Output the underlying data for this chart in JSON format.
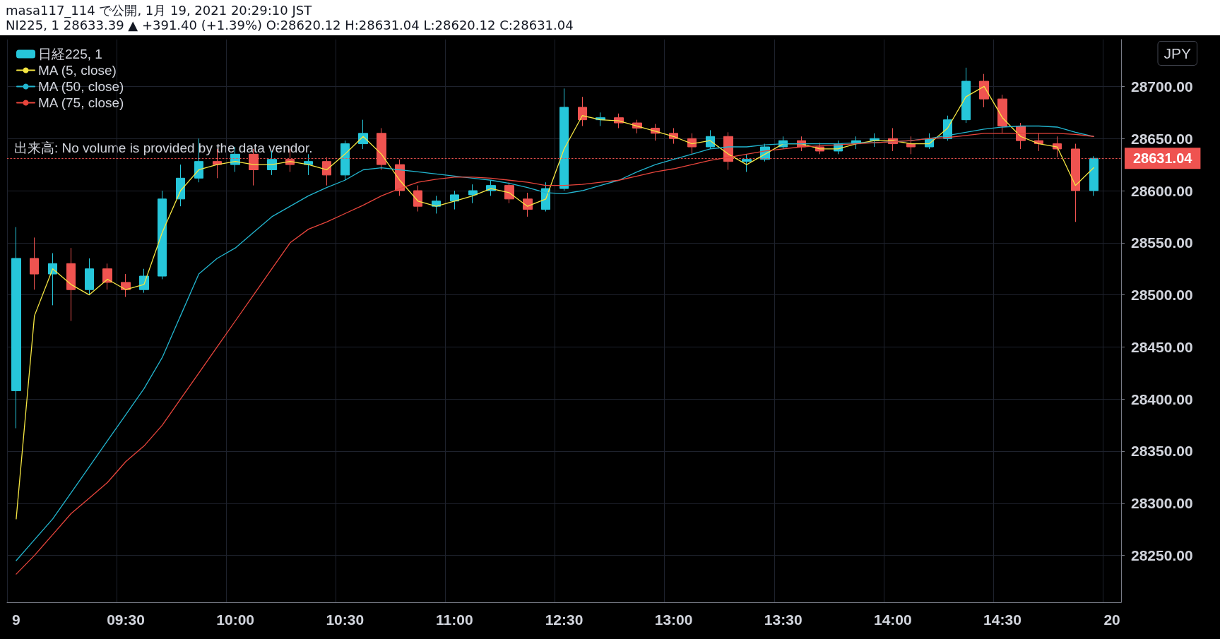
{
  "chart_data": {
    "type": "candlestick",
    "title": "masa117_114 で公開, 1月 19, 2021 20:29:10 JST",
    "subtitle": "NI225, 1 28633.39 ▲ +391.40 (+1.39%) O:28620.12 H:28631.04 L:28620.12 C:28631.04",
    "annotations": [
      "JPY",
      "出来高: No volume is provided by the data vendor."
    ],
    "categories": [
      "9",
      null,
      null,
      null,
      null,
      null,
      "09:30",
      null,
      null,
      null,
      null,
      null,
      "10:00",
      null,
      null,
      null,
      null,
      null,
      "10:30",
      null,
      null,
      null,
      null,
      null,
      "11:00",
      null,
      null,
      null,
      null,
      null,
      "12:30",
      null,
      null,
      null,
      null,
      null,
      "13:00",
      null,
      null,
      null,
      null,
      null,
      "13:30",
      null,
      null,
      null,
      null,
      null,
      "14:00",
      null,
      null,
      null,
      null,
      null,
      "14:30",
      null,
      null,
      null,
      null,
      null,
      "20"
    ],
    "series": [
      {
        "name": "日経225, 1",
        "colors": [
          "#26c6da",
          "#ef5350",
          "#26c6da",
          "#ef5350",
          "#26c6da",
          "#ef5350",
          "#ef5350",
          "#26c6da",
          "#26c6da",
          "#26c6da",
          "#26c6da",
          "#ef5350",
          "#26c6da",
          "#ef5350",
          "#26c6da",
          "#ef5350",
          "#26c6da",
          "#ef5350",
          "#26c6da",
          "#26c6da",
          "#ef5350",
          "#ef5350",
          "#ef5350",
          "#26c6da",
          "#26c6da",
          "#26c6da",
          "#26c6da",
          "#ef5350",
          "#ef5350",
          "#26c6da",
          "#26c6da",
          "#ef5350",
          "#26c6da",
          "#ef5350",
          "#ef5350",
          "#ef5350",
          "#ef5350",
          "#ef5350",
          "#26c6da",
          "#ef5350",
          "#26c6da",
          "#26c6da",
          "#26c6da",
          "#ef5350",
          "#ef5350",
          "#26c6da",
          "#26c6da",
          "#26c6da",
          "#ef5350",
          "#ef5350",
          "#26c6da",
          "#26c6da",
          "#26c6da",
          "#ef5350",
          "#ef5350",
          "#ef5350",
          "#ef5350",
          "#ef5350",
          "#ef5350",
          "#26c6da",
          null
        ],
        "ohlc": [
          [
            28408,
            28565,
            28372,
            28535
          ],
          [
            28535,
            28555,
            28505,
            28520
          ],
          [
            28520,
            28540,
            28490,
            28530
          ],
          [
            28530,
            28545,
            28475,
            28505
          ],
          [
            28505,
            28535,
            28500,
            28525
          ],
          [
            28525,
            28530,
            28505,
            28512
          ],
          [
            28512,
            28520,
            28498,
            28505
          ],
          [
            28505,
            28525,
            28502,
            28518
          ],
          [
            28518,
            28600,
            28515,
            28592
          ],
          [
            28592,
            28625,
            28585,
            28612
          ],
          [
            28612,
            28650,
            28608,
            28628
          ],
          [
            28628,
            28640,
            28612,
            28625
          ],
          [
            28625,
            28642,
            28618,
            28635
          ],
          [
            28635,
            28640,
            28605,
            28620
          ],
          [
            28620,
            28638,
            28615,
            28630
          ],
          [
            28630,
            28640,
            28618,
            28625
          ],
          [
            28625,
            28635,
            28615,
            28628
          ],
          [
            28628,
            28632,
            28605,
            28615
          ],
          [
            28615,
            28648,
            28610,
            28645
          ],
          [
            28645,
            28668,
            28640,
            28655
          ],
          [
            28655,
            28660,
            28620,
            28625
          ],
          [
            28625,
            28630,
            28595,
            28600
          ],
          [
            28600,
            28605,
            28580,
            28585
          ],
          [
            28585,
            28595,
            28578,
            28590
          ],
          [
            28590,
            28600,
            28582,
            28596
          ],
          [
            28596,
            28606,
            28588,
            28600
          ],
          [
            28600,
            28610,
            28595,
            28605
          ],
          [
            28605,
            28608,
            28588,
            28592
          ],
          [
            28592,
            28598,
            28575,
            28582
          ],
          [
            28582,
            28608,
            28580,
            28602
          ],
          [
            28602,
            28698,
            28600,
            28680
          ],
          [
            28680,
            28690,
            28662,
            28668
          ],
          [
            28668,
            28675,
            28662,
            28670
          ],
          [
            28670,
            28674,
            28660,
            28665
          ],
          [
            28665,
            28668,
            28655,
            28660
          ],
          [
            28660,
            28664,
            28648,
            28655
          ],
          [
            28655,
            28660,
            28645,
            28650
          ],
          [
            28650,
            28655,
            28635,
            28642
          ],
          [
            28642,
            28658,
            28640,
            28652
          ],
          [
            28652,
            28656,
            28620,
            28628
          ],
          [
            28628,
            28635,
            28618,
            28630
          ],
          [
            28630,
            28645,
            28628,
            28642
          ],
          [
            28642,
            28652,
            28640,
            28648
          ],
          [
            28648,
            28652,
            28638,
            28642
          ],
          [
            28642,
            28646,
            28635,
            28638
          ],
          [
            28638,
            28648,
            28635,
            28645
          ],
          [
            28645,
            28652,
            28640,
            28648
          ],
          [
            28648,
            28655,
            28642,
            28650
          ],
          [
            28650,
            28660,
            28638,
            28645
          ],
          [
            28645,
            28652,
            28635,
            28642
          ],
          [
            28642,
            28655,
            28640,
            28650
          ],
          [
            28650,
            28672,
            28648,
            28668
          ],
          [
            28668,
            28718,
            28665,
            28705
          ],
          [
            28705,
            28712,
            28680,
            28688
          ],
          [
            28688,
            28692,
            28655,
            28662
          ],
          [
            28662,
            28665,
            28640,
            28648
          ],
          [
            28648,
            28655,
            28638,
            28645
          ],
          [
            28645,
            28652,
            28632,
            28640
          ],
          [
            28640,
            28645,
            28570,
            28600
          ],
          [
            28600,
            28633,
            28595,
            28631
          ],
          null
        ]
      },
      {
        "name": "MA (5, close)",
        "type": "line",
        "color": "#f5e642",
        "values": [
          28285,
          28480,
          28525,
          28510,
          28500,
          28515,
          28505,
          28510,
          28560,
          28600,
          28620,
          28625,
          28628,
          28625,
          28625,
          28628,
          28625,
          28620,
          28635,
          28652,
          28635,
          28610,
          28590,
          28585,
          28590,
          28595,
          28602,
          28598,
          28585,
          28592,
          28640,
          28672,
          28668,
          28667,
          28662,
          28657,
          28652,
          28645,
          28648,
          28635,
          28625,
          28635,
          28645,
          28645,
          28640,
          28640,
          28645,
          28648,
          28648,
          28645,
          28645,
          28660,
          28690,
          28700,
          28670,
          28652,
          28645,
          28642,
          28605,
          28622,
          null
        ]
      },
      {
        "name": "MA (50, close)",
        "type": "line",
        "color": "#22b5cf",
        "values": [
          28245,
          28265,
          28285,
          28310,
          28335,
          28360,
          28385,
          28410,
          28440,
          28480,
          28520,
          28535,
          28545,
          28560,
          28575,
          28585,
          28595,
          28603,
          28610,
          28620,
          28622,
          28620,
          28618,
          28616,
          28614,
          28612,
          28610,
          28607,
          28603,
          28598,
          28597,
          28600,
          28605,
          28610,
          28618,
          28625,
          28630,
          28635,
          28640,
          28642,
          28642,
          28644,
          28645,
          28645,
          28645,
          28645,
          28646,
          28646,
          28647,
          28648,
          28650,
          28653,
          28656,
          28659,
          28661,
          28662,
          28662,
          28661,
          28656,
          28652,
          null
        ]
      },
      {
        "name": "MA (75, close)",
        "type": "line",
        "color": "#e8453c",
        "values": [
          28232,
          28250,
          28270,
          28290,
          28305,
          28320,
          28340,
          28355,
          28375,
          28400,
          28425,
          28450,
          28475,
          28500,
          28525,
          28550,
          28563,
          28570,
          28578,
          28586,
          28595,
          28602,
          28608,
          28611,
          28613,
          28613,
          28612,
          28610,
          28608,
          28605,
          28605,
          28606,
          28608,
          28610,
          28614,
          28618,
          28621,
          28625,
          28629,
          28632,
          28635,
          28638,
          28640,
          28642,
          28643,
          28644,
          28645,
          28646,
          28647,
          28648,
          28650,
          28651,
          28653,
          28655,
          28655,
          28655,
          28655,
          28655,
          28654,
          28652,
          null
        ]
      }
    ],
    "ylim": [
      28205,
      28745
    ],
    "yticks": [
      {
        "value": 28250,
        "label": "28250.00"
      },
      {
        "value": 28300,
        "label": "28300.00"
      },
      {
        "value": 28350,
        "label": "28350.00"
      },
      {
        "value": 28400,
        "label": "28400.00"
      },
      {
        "value": 28450,
        "label": "28450.00"
      },
      {
        "value": 28500,
        "label": "28500.00"
      },
      {
        "value": 28550,
        "label": "28550.00"
      },
      {
        "value": 28600,
        "label": "28600.00"
      },
      {
        "value": 28650,
        "label": "28650.00"
      },
      {
        "value": 28700,
        "label": "28700.00"
      }
    ],
    "ref_lines": [
      {
        "axis": "y",
        "value": 28631.04,
        "label": "28631.04",
        "color": "#ef5350",
        "line_style": "dotted"
      }
    ],
    "grid": true,
    "legend": "top left",
    "marker": "none",
    "line_style": "solid"
  }
}
